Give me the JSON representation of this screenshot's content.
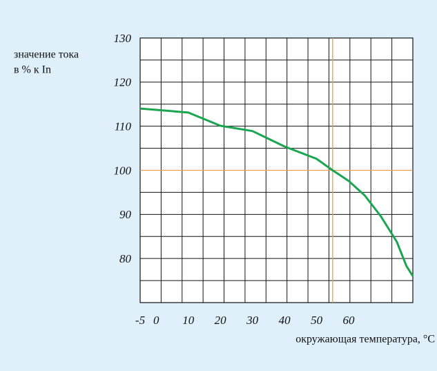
{
  "chart_data": {
    "type": "line",
    "y_label_lines": [
      "значение тока",
      "в % к In"
    ],
    "x_label": "окружающая температура, °C",
    "x": [
      -5,
      0,
      10,
      20,
      30,
      40,
      50,
      55,
      60,
      65,
      70,
      75,
      78,
      80
    ],
    "values": [
      114,
      113.7,
      113.1,
      110.1,
      108.9,
      105.4,
      102.6,
      100,
      97.6,
      94.3,
      89.6,
      83.8,
      78.3,
      76
    ],
    "color": "#1aa550",
    "xlim": [
      -5,
      80
    ],
    "ylim": [
      70,
      130
    ],
    "xticks": [
      -5,
      0,
      10,
      20,
      30,
      40,
      50,
      60
    ],
    "yticks": [
      80,
      90,
      100,
      110,
      120,
      130
    ],
    "grid": true,
    "reference": {
      "x": 55,
      "y": 100,
      "color": "#e8a050"
    }
  }
}
